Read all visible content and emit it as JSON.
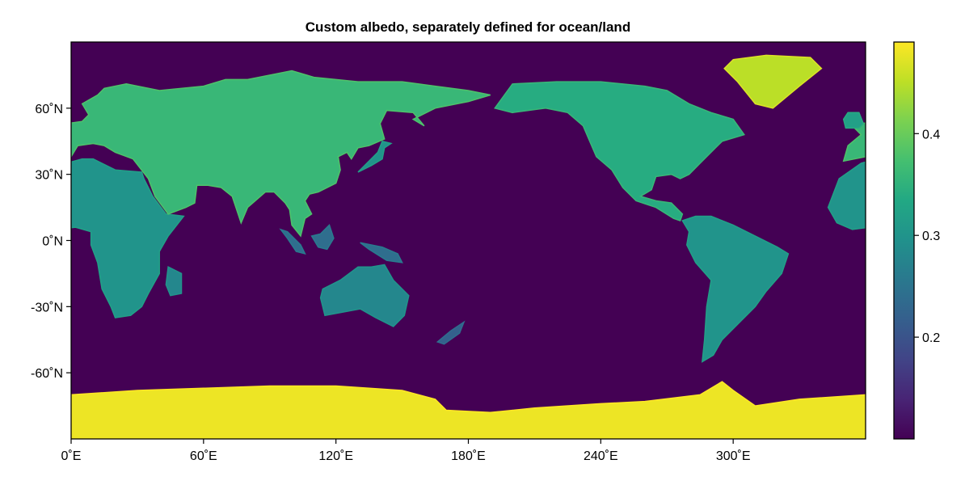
{
  "chart_data": {
    "type": "heatmap",
    "title": "Custom albedo, separately defined for ocean/land",
    "xlabel": "",
    "ylabel": "",
    "x_range": [
      0,
      360
    ],
    "y_range": [
      -90,
      90
    ],
    "x_ticks": [
      {
        "value": 0,
        "label": "0˚E"
      },
      {
        "value": 60,
        "label": "60˚E"
      },
      {
        "value": 120,
        "label": "120˚E"
      },
      {
        "value": 180,
        "label": "180˚E"
      },
      {
        "value": 240,
        "label": "240˚E"
      },
      {
        "value": 300,
        "label": "300˚E"
      }
    ],
    "y_ticks": [
      {
        "value": 60,
        "label": "60˚N"
      },
      {
        "value": 30,
        "label": "30˚N"
      },
      {
        "value": 0,
        "label": "0˚N"
      },
      {
        "value": -30,
        "label": "-30˚N"
      },
      {
        "value": -60,
        "label": "-60˚N"
      }
    ],
    "colorbar": {
      "colormap": "viridis",
      "range": [
        0.1,
        0.49
      ],
      "ticks": [
        {
          "value": 0.2,
          "label": "0.2"
        },
        {
          "value": 0.3,
          "label": "0.3"
        },
        {
          "value": 0.4,
          "label": "0.4"
        }
      ]
    },
    "grid": false,
    "ocean_albedo": 0.1,
    "ice_albedo": 0.48,
    "land_regions": [
      {
        "name": "North America",
        "value": 0.34,
        "polygon": [
          [
            192,
            60
          ],
          [
            200,
            71
          ],
          [
            220,
            72
          ],
          [
            240,
            72
          ],
          [
            260,
            70
          ],
          [
            270,
            68
          ],
          [
            280,
            62
          ],
          [
            290,
            58
          ],
          [
            300,
            55
          ],
          [
            305,
            48
          ],
          [
            295,
            45
          ],
          [
            292,
            42
          ],
          [
            285,
            35
          ],
          [
            280,
            30
          ],
          [
            276,
            28
          ],
          [
            272,
            30
          ],
          [
            265,
            29
          ],
          [
            263,
            23
          ],
          [
            258,
            20
          ],
          [
            265,
            18
          ],
          [
            272,
            17
          ],
          [
            277,
            12
          ],
          [
            276,
            9
          ],
          [
            273,
            10
          ],
          [
            265,
            15
          ],
          [
            256,
            18
          ],
          [
            250,
            24
          ],
          [
            245,
            32
          ],
          [
            238,
            38
          ],
          [
            235,
            45
          ],
          [
            232,
            52
          ],
          [
            225,
            58
          ],
          [
            215,
            60
          ],
          [
            200,
            58
          ]
        ]
      },
      {
        "name": "Greenland",
        "value": 0.45,
        "polygon": [
          [
            300,
            82
          ],
          [
            315,
            84
          ],
          [
            335,
            83
          ],
          [
            340,
            78
          ],
          [
            330,
            70
          ],
          [
            318,
            60
          ],
          [
            310,
            62
          ],
          [
            302,
            72
          ],
          [
            296,
            78
          ]
        ]
      },
      {
        "name": "South America",
        "value": 0.3,
        "polygon": [
          [
            277,
            9
          ],
          [
            283,
            11
          ],
          [
            290,
            11
          ],
          [
            300,
            7
          ],
          [
            310,
            2
          ],
          [
            320,
            -3
          ],
          [
            325,
            -6
          ],
          [
            322,
            -15
          ],
          [
            315,
            -23
          ],
          [
            310,
            -30
          ],
          [
            302,
            -38
          ],
          [
            295,
            -45
          ],
          [
            291,
            -52
          ],
          [
            286,
            -55
          ],
          [
            287,
            -45
          ],
          [
            288,
            -30
          ],
          [
            290,
            -18
          ],
          [
            283,
            -10
          ],
          [
            279,
            -2
          ],
          [
            280,
            4
          ]
        ]
      },
      {
        "name": "Africa",
        "value": 0.3,
        "polygon": [
          [
            343,
            15
          ],
          [
            348,
            28
          ],
          [
            358,
            35
          ],
          [
            5,
            37
          ],
          [
            10,
            37
          ],
          [
            20,
            32
          ],
          [
            32,
            31
          ],
          [
            33,
            28
          ],
          [
            37,
            20
          ],
          [
            43,
            12
          ],
          [
            51,
            11
          ],
          [
            44,
            2
          ],
          [
            40,
            -5
          ],
          [
            40,
            -15
          ],
          [
            35,
            -24
          ],
          [
            32,
            -30
          ],
          [
            27,
            -34
          ],
          [
            20,
            -35
          ],
          [
            18,
            -30
          ],
          [
            14,
            -22
          ],
          [
            12,
            -10
          ],
          [
            9,
            -2
          ],
          [
            9,
            4
          ],
          [
            2,
            6
          ],
          [
            354,
            5
          ],
          [
            347,
            8
          ]
        ]
      },
      {
        "name": "Madagascar",
        "value": 0.28,
        "polygon": [
          [
            44,
            -12
          ],
          [
            50,
            -15
          ],
          [
            50,
            -24
          ],
          [
            45,
            -25
          ],
          [
            43,
            -20
          ]
        ]
      },
      {
        "name": "Eurasia",
        "value": 0.36,
        "polygon": [
          [
            350,
            36
          ],
          [
            352,
            43
          ],
          [
            358,
            48
          ],
          [
            355,
            51
          ],
          [
            358,
            53
          ],
          [
            5,
            54
          ],
          [
            8,
            57
          ],
          [
            5,
            62
          ],
          [
            12,
            66
          ],
          [
            15,
            69
          ],
          [
            25,
            71
          ],
          [
            40,
            68
          ],
          [
            60,
            70
          ],
          [
            70,
            73
          ],
          [
            80,
            73
          ],
          [
            100,
            77
          ],
          [
            110,
            74
          ],
          [
            130,
            72
          ],
          [
            150,
            72
          ],
          [
            165,
            70
          ],
          [
            180,
            68
          ],
          [
            190,
            66
          ],
          [
            180,
            63
          ],
          [
            165,
            60
          ],
          [
            155,
            55
          ],
          [
            160,
            52
          ],
          [
            155,
            58
          ],
          [
            143,
            59
          ],
          [
            140,
            53
          ],
          [
            142,
            46
          ],
          [
            135,
            43
          ],
          [
            130,
            42
          ],
          [
            127,
            37
          ],
          [
            125,
            40
          ],
          [
            121,
            38
          ],
          [
            122,
            32
          ],
          [
            120,
            26
          ],
          [
            112,
            22
          ],
          [
            108,
            21
          ],
          [
            106,
            18
          ],
          [
            109,
            12
          ],
          [
            106,
            10
          ],
          [
            104,
            2
          ],
          [
            100,
            7
          ],
          [
            99,
            14
          ],
          [
            97,
            17
          ],
          [
            92,
            22
          ],
          [
            88,
            22
          ],
          [
            80,
            15
          ],
          [
            77,
            8
          ],
          [
            73,
            20
          ],
          [
            68,
            24
          ],
          [
            62,
            25
          ],
          [
            57,
            25
          ],
          [
            56,
            17
          ],
          [
            52,
            15
          ],
          [
            44,
            12
          ],
          [
            38,
            20
          ],
          [
            35,
            28
          ],
          [
            28,
            37
          ],
          [
            20,
            40
          ],
          [
            15,
            43
          ],
          [
            10,
            44
          ],
          [
            3,
            43
          ],
          [
            0,
            38
          ]
        ]
      },
      {
        "name": "British Isles",
        "value": 0.32,
        "polygon": [
          [
            351,
            51
          ],
          [
            357,
            51
          ],
          [
            359,
            53
          ],
          [
            357,
            58
          ],
          [
            352,
            58
          ],
          [
            350,
            55
          ]
        ]
      },
      {
        "name": "Japan",
        "value": 0.3,
        "polygon": [
          [
            130,
            31
          ],
          [
            136,
            34
          ],
          [
            141,
            37
          ],
          [
            142,
            42
          ],
          [
            145,
            44
          ],
          [
            141,
            45
          ],
          [
            139,
            40
          ],
          [
            134,
            35
          ]
        ]
      },
      {
        "name": "Borneo",
        "value": 0.24,
        "polygon": [
          [
            109,
            2
          ],
          [
            112,
            -3
          ],
          [
            116,
            -4
          ],
          [
            119,
            1
          ],
          [
            117,
            7
          ],
          [
            113,
            3
          ]
        ]
      },
      {
        "name": "Sumatra",
        "value": 0.24,
        "polygon": [
          [
            95,
            5
          ],
          [
            98,
            4
          ],
          [
            104,
            -2
          ],
          [
            106,
            -6
          ],
          [
            102,
            -5
          ],
          [
            98,
            1
          ]
        ]
      },
      {
        "name": "New Guinea",
        "value": 0.24,
        "polygon": [
          [
            131,
            -1
          ],
          [
            141,
            -3
          ],
          [
            148,
            -6
          ],
          [
            150,
            -10
          ],
          [
            143,
            -9
          ],
          [
            135,
            -4
          ]
        ]
      },
      {
        "name": "Australia",
        "value": 0.28,
        "polygon": [
          [
            114,
            -22
          ],
          [
            122,
            -18
          ],
          [
            130,
            -12
          ],
          [
            136,
            -12
          ],
          [
            142,
            -11
          ],
          [
            146,
            -18
          ],
          [
            153,
            -25
          ],
          [
            151,
            -34
          ],
          [
            146,
            -39
          ],
          [
            138,
            -35
          ],
          [
            131,
            -31
          ],
          [
            115,
            -34
          ],
          [
            113,
            -26
          ]
        ]
      },
      {
        "name": "New Zealand",
        "value": 0.22,
        "polygon": [
          [
            166,
            -46
          ],
          [
            172,
            -41
          ],
          [
            178,
            -37
          ],
          [
            176,
            -42
          ],
          [
            169,
            -47
          ]
        ]
      },
      {
        "name": "Antarctica",
        "value": 0.48,
        "polygon": [
          [
            0,
            -90
          ],
          [
            0,
            -70
          ],
          [
            30,
            -68
          ],
          [
            60,
            -67
          ],
          [
            90,
            -66
          ],
          [
            120,
            -66
          ],
          [
            150,
            -68
          ],
          [
            165,
            -72
          ],
          [
            170,
            -77
          ],
          [
            190,
            -78
          ],
          [
            210,
            -76
          ],
          [
            240,
            -74
          ],
          [
            260,
            -73
          ],
          [
            285,
            -70
          ],
          [
            295,
            -64
          ],
          [
            300,
            -68
          ],
          [
            310,
            -75
          ],
          [
            330,
            -72
          ],
          [
            360,
            -70
          ],
          [
            360,
            -90
          ]
        ]
      }
    ]
  }
}
